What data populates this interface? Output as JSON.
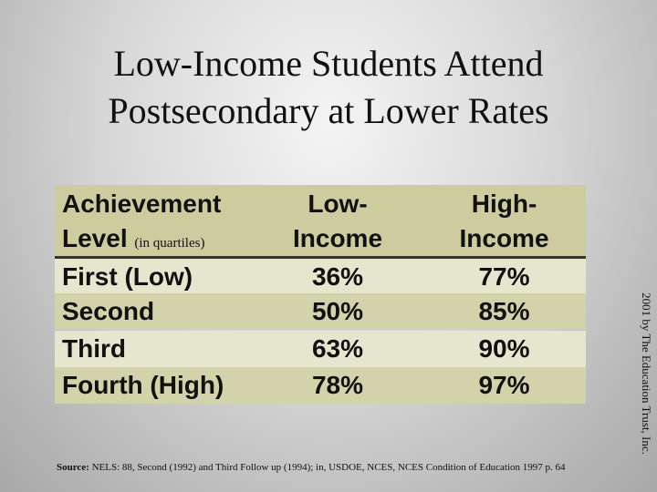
{
  "title": "Low-Income Students Attend Postsecondary at Lower Rates",
  "table": {
    "header": {
      "level": "Achievement Level",
      "level_note": "(in quartiles)",
      "low": "Low-Income",
      "high": "High-Income"
    },
    "rows": [
      [
        "First (Low)",
        "36%",
        "77%"
      ],
      [
        "Second",
        "50%",
        "85%"
      ],
      [
        "Third",
        "63%",
        "90%"
      ],
      [
        "Fourth (High)",
        "78%",
        "97%"
      ]
    ]
  },
  "source": {
    "label": "Source:",
    "text": "NELS: 88, Second (1992) and Third Follow up (1994); in, USDOE, NCES, NCES Condition of Education 1997 p. 64"
  },
  "credit": "2001 by The Education Trust, Inc."
}
